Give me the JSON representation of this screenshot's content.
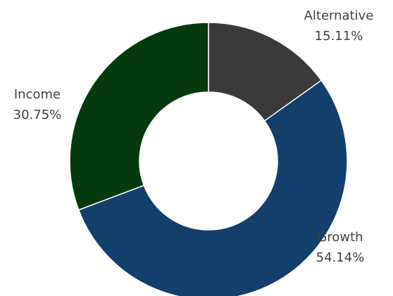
{
  "chart_data": {
    "type": "pie",
    "variant": "donut",
    "title": "",
    "legend": "none",
    "categories": [
      "Alternative",
      "Growth",
      "Income"
    ],
    "values": [
      15.11,
      54.14,
      30.75
    ],
    "value_labels": [
      "15.11%",
      "54.14%",
      "30.75%"
    ],
    "colors": [
      "#3a3a3a",
      "#123f6c",
      "#053a0d"
    ],
    "separator_color": "#ffffff",
    "label_color": "#404040"
  }
}
